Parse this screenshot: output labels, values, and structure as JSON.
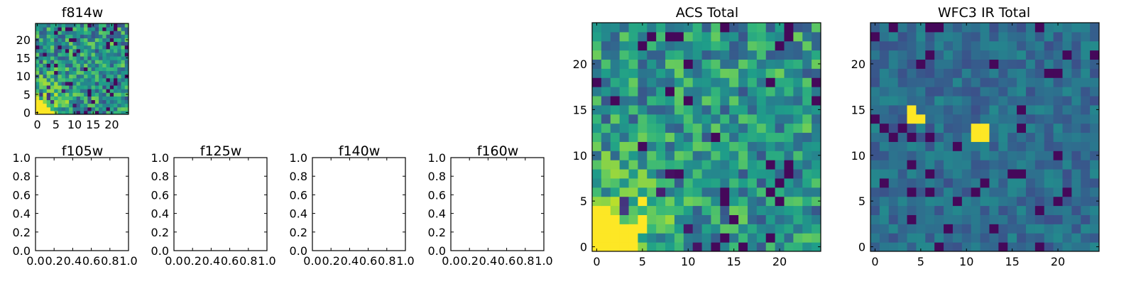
{
  "figure": {
    "panels": [
      {
        "title": "f814w"
      },
      {
        "title": "f105w"
      },
      {
        "title": "f125w"
      },
      {
        "title": "f140w"
      },
      {
        "title": "f160w"
      },
      {
        "title": "ACS Total"
      },
      {
        "title": "WFC3 IR Total"
      }
    ]
  },
  "chart_data": [
    {
      "type": "heatmap",
      "title": "f814w",
      "xlabel": "",
      "ylabel": "",
      "size": 25,
      "xlim": [
        -0.5,
        24.5
      ],
      "ylim": [
        -0.5,
        24.5
      ],
      "xticks": [
        0,
        5,
        10,
        15,
        20
      ],
      "yticks": [
        0,
        5,
        10,
        15,
        20
      ],
      "colormap": "viridis",
      "values": "pixel noise field; bright (yellow) cluster at x 0-4, y 0-3",
      "seed": 11,
      "bright": [
        [
          0,
          0
        ],
        [
          1,
          0
        ],
        [
          2,
          0
        ],
        [
          3,
          0
        ],
        [
          0,
          1
        ],
        [
          1,
          1
        ],
        [
          2,
          1
        ],
        [
          0,
          2
        ],
        [
          1,
          2
        ],
        [
          2,
          2
        ],
        [
          0,
          3
        ],
        [
          1,
          3
        ],
        [
          3,
          1
        ],
        [
          4,
          0
        ]
      ],
      "mean": 0.52,
      "spread": 0.28,
      "dark": 0.08
    },
    {
      "type": "empty",
      "title": "f105w",
      "xlim": [
        0,
        1
      ],
      "ylim": [
        0,
        1
      ],
      "xticks": [
        "0.0",
        "0.2",
        "0.4",
        "0.6",
        "0.8",
        "1.0"
      ],
      "yticks": [
        "0.0",
        "0.2",
        "0.4",
        "0.6",
        "0.8",
        "1.0"
      ]
    },
    {
      "type": "empty",
      "title": "f125w",
      "xlim": [
        0,
        1
      ],
      "ylim": [
        0,
        1
      ],
      "xticks": [
        "0.0",
        "0.2",
        "0.4",
        "0.6",
        "0.8",
        "1.0"
      ],
      "yticks": [
        "0.0",
        "0.2",
        "0.4",
        "0.6",
        "0.8",
        "1.0"
      ]
    },
    {
      "type": "empty",
      "title": "f140w",
      "xlim": [
        0,
        1
      ],
      "ylim": [
        0,
        1
      ],
      "xticks": [
        "0.0",
        "0.2",
        "0.4",
        "0.6",
        "0.8",
        "1.0"
      ],
      "yticks": [
        "0.0",
        "0.2",
        "0.4",
        "0.6",
        "0.8",
        "1.0"
      ]
    },
    {
      "type": "empty",
      "title": "f160w",
      "xlim": [
        0,
        1
      ],
      "ylim": [
        0,
        1
      ],
      "xticks": [
        "0.0",
        "0.2",
        "0.4",
        "0.6",
        "0.8",
        "1.0"
      ],
      "yticks": [
        "0.0",
        "0.2",
        "0.4",
        "0.6",
        "0.8",
        "1.0"
      ]
    },
    {
      "type": "heatmap",
      "title": "ACS Total",
      "size": 25,
      "xlim": [
        -0.5,
        24.5
      ],
      "ylim": [
        -0.5,
        24.5
      ],
      "xticks": [
        0,
        5,
        10,
        15,
        20
      ],
      "yticks": [
        0,
        5,
        10,
        15,
        20
      ],
      "colormap": "viridis",
      "values": "pixel noise field; bright cluster at x 0-5, y 0-5",
      "seed": 11,
      "bright": [
        [
          0,
          0
        ],
        [
          1,
          0
        ],
        [
          2,
          0
        ],
        [
          3,
          0
        ],
        [
          4,
          0
        ],
        [
          0,
          1
        ],
        [
          1,
          1
        ],
        [
          2,
          1
        ],
        [
          3,
          1
        ],
        [
          4,
          1
        ],
        [
          0,
          2
        ],
        [
          1,
          2
        ],
        [
          2,
          2
        ],
        [
          3,
          2
        ],
        [
          4,
          2
        ],
        [
          0,
          3
        ],
        [
          1,
          3
        ],
        [
          2,
          3
        ],
        [
          0,
          4
        ],
        [
          1,
          4
        ],
        [
          5,
          5
        ],
        [
          5,
          2
        ],
        [
          5,
          3
        ]
      ],
      "mean": 0.52,
      "spread": 0.26,
      "dark": 0.06
    },
    {
      "type": "heatmap",
      "title": "WFC3 IR Total",
      "size": 25,
      "xlim": [
        -0.5,
        24.5
      ],
      "ylim": [
        -0.5,
        24.5
      ],
      "xticks": [
        0,
        5,
        10,
        15,
        20
      ],
      "yticks": [
        0,
        5,
        10,
        15,
        20
      ],
      "colormap": "viridis",
      "values": "pixel noise field; two bright pixels groups near (4-5,14-15) and (11-12,12-13)",
      "seed": 29,
      "bright": [
        [
          4,
          14
        ],
        [
          4,
          15
        ],
        [
          5,
          14
        ],
        [
          11,
          12
        ],
        [
          12,
          12
        ],
        [
          11,
          13
        ],
        [
          12,
          13
        ]
      ],
      "mean": 0.36,
      "spread": 0.12,
      "dark": 0.05
    }
  ]
}
